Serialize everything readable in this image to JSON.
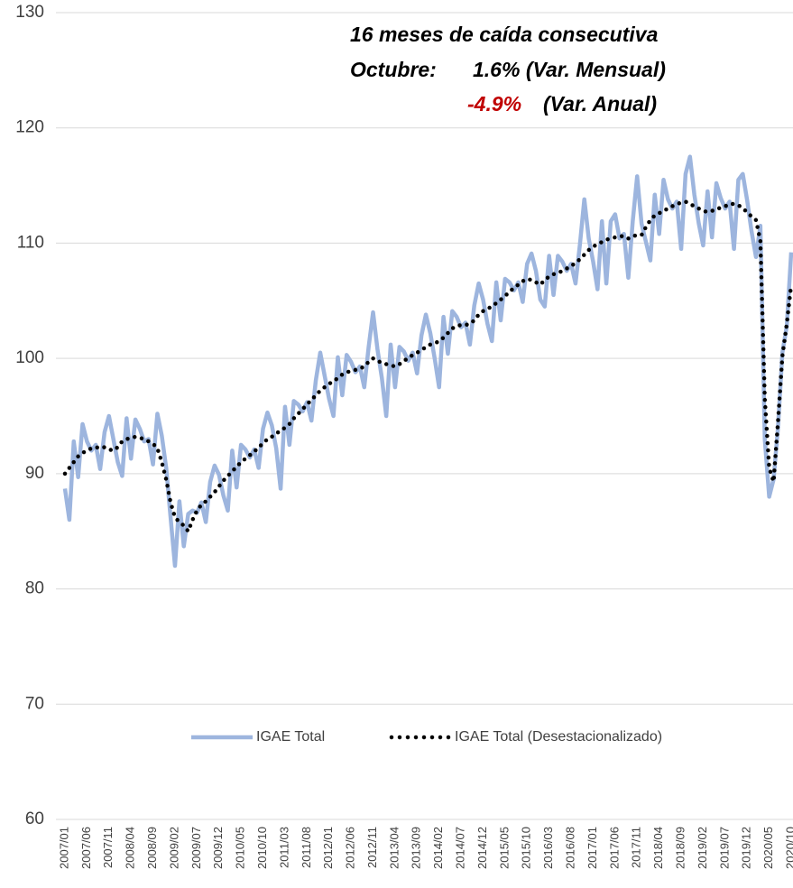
{
  "chart_data": {
    "type": "line",
    "annotations": {
      "line1": "16 meses de caída consecutiva",
      "label": "Octubre:",
      "monthly": "1.6% (Var. Mensual)",
      "annual_value": "-4.9%",
      "annual_text": "(Var. Anual)"
    },
    "annual_color": "#c00000",
    "categories": [
      "2007/01",
      null,
      null,
      null,
      null,
      "2007/06",
      null,
      null,
      null,
      null,
      "2007/11",
      null,
      null,
      null,
      null,
      "2008/04",
      null,
      null,
      null,
      null,
      "2008/09",
      null,
      null,
      null,
      null,
      "2009/02",
      null,
      null,
      null,
      null,
      "2009/07",
      null,
      null,
      null,
      null,
      "2009/12",
      null,
      null,
      null,
      null,
      "2010/05",
      null,
      null,
      null,
      null,
      "2010/10",
      null,
      null,
      null,
      null,
      "2011/03",
      null,
      null,
      null,
      null,
      "2011/08",
      null,
      null,
      null,
      null,
      "2012/01",
      null,
      null,
      null,
      null,
      "2012/06",
      null,
      null,
      null,
      null,
      "2012/11",
      null,
      null,
      null,
      null,
      "2013/04",
      null,
      null,
      null,
      null,
      "2013/09",
      null,
      null,
      null,
      null,
      "2014/02",
      null,
      null,
      null,
      null,
      "2014/07",
      null,
      null,
      null,
      null,
      "2014/12",
      null,
      null,
      null,
      null,
      "2015/05",
      null,
      null,
      null,
      null,
      "2015/10",
      null,
      null,
      null,
      null,
      "2016/03",
      null,
      null,
      null,
      null,
      "2016/08",
      null,
      null,
      null,
      null,
      "2017/01",
      null,
      null,
      null,
      null,
      "2017/06",
      null,
      null,
      null,
      null,
      "2017/11",
      null,
      null,
      null,
      null,
      "2018/04",
      null,
      null,
      null,
      null,
      "2018/09",
      null,
      null,
      null,
      null,
      "2019/02",
      null,
      null,
      null,
      null,
      "2019/07",
      null,
      null,
      null,
      null,
      "2019/12",
      null,
      null,
      null,
      null,
      "2020/05",
      null,
      null,
      null,
      null,
      "2020/10"
    ],
    "series": [
      {
        "name": "IGAE Total",
        "color": "#9db5de",
        "style": "solid",
        "values": [
          88.7,
          86.0,
          92.8,
          89.7,
          94.3,
          92.8,
          92.0,
          92.5,
          90.4,
          93.6,
          95.0,
          93.0,
          91.0,
          89.8,
          94.8,
          91.3,
          94.7,
          93.9,
          92.8,
          93.0,
          90.8,
          95.2,
          93.3,
          90.5,
          86.2,
          82.0,
          87.6,
          83.7,
          86.5,
          86.8,
          86.6,
          87.5,
          85.8,
          89.3,
          90.7,
          89.9,
          88.1,
          86.8,
          92.0,
          88.8,
          92.5,
          92.1,
          91.4,
          92.1,
          90.5,
          93.9,
          95.3,
          94.2,
          92.2,
          88.7,
          95.8,
          92.5,
          96.3,
          96.0,
          95.4,
          96.2,
          94.6,
          98.1,
          100.5,
          98.5,
          96.5,
          95.0,
          100.1,
          96.8,
          100.3,
          99.7,
          98.8,
          99.3,
          97.5,
          101.0,
          104.0,
          100.8,
          98.3,
          95.0,
          101.2,
          97.5,
          101.0,
          100.6,
          99.8,
          100.5,
          98.7,
          102.0,
          103.8,
          102.2,
          100.0,
          97.5,
          103.6,
          100.4,
          104.1,
          103.6,
          102.7,
          103.1,
          101.2,
          104.6,
          106.5,
          105.1,
          103.0,
          101.5,
          106.6,
          103.3,
          106.9,
          106.6,
          105.9,
          106.6,
          104.9,
          108.2,
          109.1,
          107.6,
          105.1,
          104.5,
          108.9,
          105.5,
          108.9,
          108.4,
          107.6,
          108.2,
          106.5,
          109.9,
          113.8,
          110.4,
          108.4,
          106.0,
          111.9,
          106.5,
          111.9,
          112.5,
          110.4,
          110.8,
          107.0,
          111.9,
          115.8,
          111.7,
          110.1,
          108.5,
          114.2,
          110.8,
          115.5,
          113.8,
          113.0,
          113.6,
          109.5,
          116.0,
          117.5,
          114.2,
          111.7,
          109.8,
          114.5,
          110.5,
          115.2,
          113.9,
          113.0,
          113.6,
          109.5,
          115.5,
          116.0,
          113.7,
          111.0,
          108.8,
          111.5,
          93.0,
          88.0,
          89.5,
          94.0,
          100.5,
          102.8,
          109.2
        ]
      },
      {
        "name": "IGAE Total (Desestacionalizado)",
        "color": "#000000",
        "style": "dotted",
        "values": [
          90.0,
          90.5,
          91.0,
          91.5,
          91.8,
          92.0,
          92.2,
          92.3,
          92.2,
          92.3,
          92.1,
          92.0,
          92.3,
          92.8,
          93.0,
          93.1,
          93.2,
          93.1,
          93.0,
          92.8,
          92.6,
          92.2,
          91.0,
          89.5,
          87.5,
          86.2,
          85.8,
          85.5,
          85.0,
          86.0,
          86.8,
          87.3,
          87.6,
          88.0,
          88.4,
          88.9,
          89.4,
          89.8,
          90.2,
          90.6,
          91.0,
          91.3,
          91.6,
          91.9,
          92.3,
          92.6,
          93.0,
          93.2,
          93.5,
          93.7,
          94.0,
          94.3,
          94.8,
          95.2,
          95.6,
          96.0,
          96.4,
          96.8,
          97.2,
          97.5,
          97.8,
          98.0,
          98.3,
          98.6,
          98.8,
          98.9,
          99.0,
          99.1,
          99.3,
          99.7,
          100.0,
          99.8,
          99.6,
          99.5,
          99.4,
          99.3,
          99.5,
          99.8,
          100.0,
          100.3,
          100.5,
          100.7,
          101.0,
          101.2,
          101.3,
          101.5,
          101.8,
          102.2,
          102.6,
          102.8,
          102.9,
          102.9,
          103.0,
          103.3,
          103.8,
          104.1,
          104.3,
          104.5,
          104.8,
          105.1,
          105.4,
          105.8,
          106.1,
          106.4,
          106.7,
          106.9,
          106.8,
          106.6,
          106.4,
          106.8,
          107.1,
          107.3,
          107.4,
          107.6,
          107.8,
          108.0,
          108.3,
          108.6,
          109.0,
          109.4,
          109.7,
          109.9,
          110.1,
          110.3,
          110.4,
          110.5,
          110.6,
          110.6,
          110.4,
          110.6,
          110.7,
          110.7,
          111.4,
          112.0,
          112.4,
          112.6,
          112.8,
          113.0,
          113.2,
          113.4,
          113.5,
          113.6,
          113.4,
          113.2,
          113.0,
          112.8,
          112.7,
          112.8,
          112.9,
          113.1,
          113.2,
          113.4,
          113.4,
          113.3,
          113.0,
          112.7,
          112.3,
          112.0,
          110.2,
          96.5,
          90.5,
          89.3,
          94.5,
          100.2,
          103.0,
          106.4
        ]
      }
    ],
    "ylim": [
      60,
      130
    ],
    "yticks": [
      60,
      70,
      80,
      90,
      100,
      110,
      120,
      130
    ],
    "grid": true,
    "legend": "bottom"
  }
}
